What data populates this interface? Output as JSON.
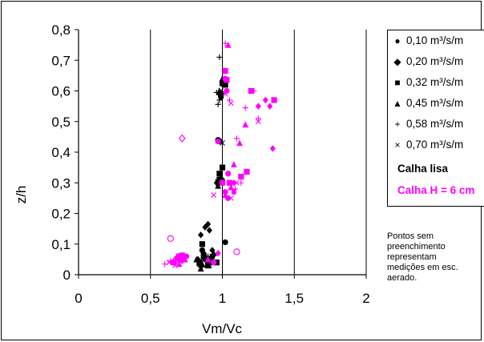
{
  "chart_data": {
    "type": "scatter",
    "xlabel": "Vm/Vc",
    "ylabel": "z/h",
    "xlim": [
      0,
      2
    ],
    "ylim": [
      0,
      0.8
    ],
    "x_ticks": [
      "0",
      "0,5",
      "1",
      "1,5",
      "2"
    ],
    "y_ticks": [
      "0",
      "0,1",
      "0,2",
      "0,3",
      "0,4",
      "0,5",
      "0,6",
      "0,7",
      "0,8"
    ],
    "grid": "vertical lines at x = 0.5, 1, 1.5, 2",
    "legend_position": "right",
    "legend": [
      {
        "symbol": "●",
        "label": "0,10 m³/s/m"
      },
      {
        "symbol": "◆",
        "label": "0,20 m³/s/m"
      },
      {
        "symbol": "■",
        "label": "0,32 m³/s/m"
      },
      {
        "symbol": "▲",
        "label": "0,45 m³/s/m"
      },
      {
        "symbol": "+",
        "label": "0,58 m³/s/m"
      },
      {
        "symbol": "×",
        "label": "0,70 m³/s/m"
      }
    ],
    "color_legend": [
      {
        "label": "Calha lisa",
        "color": "#000000"
      },
      {
        "label": "Calha H = 6 cm",
        "color": "#ff00ff"
      }
    ],
    "note": [
      "Pontos sem",
      "preenchimento",
      "representam",
      "medições em esc.",
      "aerado."
    ],
    "series": [
      {
        "name": "0,10 m³/s/m",
        "group": "Calha lisa",
        "marker": "circle",
        "color": "#000000",
        "points": [
          [
            0.85,
            0.03
          ],
          [
            0.88,
            0.05
          ],
          [
            0.9,
            0.04
          ],
          [
            0.93,
            0.06
          ],
          [
            0.86,
            0.08
          ],
          [
            0.98,
            0.3
          ],
          [
            1.0,
            0.35
          ],
          [
            0.99,
            0.58
          ],
          [
            1.01,
            0.62
          ],
          [
            0.98,
            0.436
          ],
          [
            0.97,
            0.44
          ],
          [
            1.02,
            0.106
          ]
        ]
      },
      {
        "name": "0,20 m³/s/m",
        "group": "Calha lisa",
        "marker": "diamond",
        "color": "#000000",
        "points": [
          [
            0.83,
            0.05
          ],
          [
            0.87,
            0.07
          ],
          [
            0.9,
            0.165
          ],
          [
            0.88,
            0.155
          ],
          [
            0.91,
            0.145
          ],
          [
            0.85,
            0.13
          ],
          [
            0.93,
            0.08
          ],
          [
            0.96,
            0.3
          ],
          [
            1.0,
            0.31
          ],
          [
            0.98,
            0.59
          ],
          [
            1.01,
            0.63
          ],
          [
            0.98,
            0.436
          ]
        ]
      },
      {
        "name": "0,32 m³/s/m",
        "group": "Calha lisa",
        "marker": "square",
        "color": "#000000",
        "points": [
          [
            0.84,
            0.04
          ],
          [
            0.87,
            0.06
          ],
          [
            0.9,
            0.03
          ],
          [
            0.92,
            0.05
          ],
          [
            0.86,
            0.1
          ],
          [
            0.98,
            0.33
          ],
          [
            1.0,
            0.35
          ],
          [
            0.98,
            0.31
          ],
          [
            0.99,
            0.59
          ],
          [
            1.02,
            0.62
          ],
          [
            1.0,
            0.625
          ],
          [
            0.96,
            0.04
          ]
        ]
      },
      {
        "name": "0,45 m³/s/m",
        "group": "Calha lisa",
        "marker": "triangle",
        "color": "#000000",
        "points": [
          [
            0.82,
            0.05
          ],
          [
            0.85,
            0.02
          ],
          [
            0.88,
            0.06
          ],
          [
            0.91,
            0.04
          ],
          [
            0.94,
            0.07
          ],
          [
            0.97,
            0.29
          ],
          [
            0.99,
            0.32
          ],
          [
            0.98,
            0.6
          ],
          [
            1.0,
            0.64
          ],
          [
            0.86,
            0.035
          ],
          [
            0.89,
            0.055
          ]
        ]
      },
      {
        "name": "0,58 m³/s/m",
        "group": "Calha lisa",
        "marker": "plus",
        "color": "#000000",
        "points": [
          [
            0.83,
            0.045
          ],
          [
            0.86,
            0.025
          ],
          [
            0.9,
            0.06
          ],
          [
            0.97,
            0.31
          ],
          [
            0.98,
            0.57
          ],
          [
            0.98,
            0.71
          ],
          [
            0.97,
            0.556
          ],
          [
            0.96,
            0.595
          ]
        ]
      },
      {
        "name": "0,70 m³/s/m",
        "group": "Calha lisa",
        "marker": "x",
        "color": "#000000",
        "points": [
          [
            0.84,
            0.035
          ],
          [
            0.87,
            0.065
          ],
          [
            0.91,
            0.03
          ],
          [
            0.97,
            0.3
          ],
          [
            0.99,
            0.6
          ],
          [
            1.0,
            0.43
          ],
          [
            0.93,
            0.06
          ]
        ]
      },
      {
        "name": "0,10 m³/s/m",
        "group": "Calha H = 6 cm",
        "marker": "circle",
        "color": "#ff00ff",
        "points": [
          [
            0.7,
            0.05
          ],
          [
            0.75,
            0.06
          ],
          [
            0.94,
            0.04
          ],
          [
            1.02,
            0.27
          ],
          [
            1.04,
            0.33
          ],
          [
            1.03,
            0.6
          ],
          [
            1.02,
            0.64
          ],
          [
            1.04,
            0.25
          ],
          [
            0.97,
            0.435
          ]
        ]
      },
      {
        "name": "0,20 m³/s/m",
        "group": "Calha H = 6 cm",
        "marker": "diamond",
        "color": "#ff00ff",
        "points": [
          [
            0.68,
            0.055
          ],
          [
            0.72,
            0.045
          ],
          [
            1.08,
            0.27
          ],
          [
            1.08,
            0.3
          ],
          [
            1.25,
            0.55
          ],
          [
            1.33,
            0.55
          ],
          [
            1.35,
            0.412
          ],
          [
            1.3,
            0.57
          ],
          [
            0.97,
            0.07
          ]
        ]
      },
      {
        "name": "0,32 m³/s/m",
        "group": "Calha H = 6 cm",
        "marker": "square",
        "color": "#ff00ff",
        "points": [
          [
            0.66,
            0.04
          ],
          [
            0.7,
            0.06
          ],
          [
            0.73,
            0.05
          ],
          [
            1.0,
            0.3
          ],
          [
            1.13,
            0.32
          ],
          [
            1.17,
            0.336
          ],
          [
            1.36,
            0.57
          ],
          [
            1.2,
            0.6
          ],
          [
            1.02,
            0.665
          ],
          [
            1.03,
            0.636
          ],
          [
            1.05,
            0.3
          ],
          [
            0.72,
            0.063
          ]
        ]
      },
      {
        "name": "0,45 m³/s/m",
        "group": "Calha H = 6 cm",
        "marker": "triangle",
        "color": "#ff00ff",
        "points": [
          [
            0.66,
            0.045
          ],
          [
            0.7,
            0.035
          ],
          [
            0.74,
            0.05
          ],
          [
            1.02,
            0.26
          ],
          [
            1.12,
            0.43
          ],
          [
            1.16,
            0.49
          ],
          [
            1.04,
            0.75
          ],
          [
            1.08,
            0.36
          ],
          [
            1.06,
            0.285
          ],
          [
            0.9,
            0.05
          ]
        ]
      },
      {
        "name": "0,58 m³/s/m",
        "group": "Calha H = 6 cm",
        "marker": "plus",
        "color": "#ff00ff",
        "points": [
          [
            0.6,
            0.035
          ],
          [
            0.64,
            0.045
          ],
          [
            1.05,
            0.57
          ],
          [
            1.1,
            0.445
          ],
          [
            1.16,
            0.545
          ],
          [
            1.25,
            0.51
          ],
          [
            1.22,
            0.6
          ],
          [
            1.02,
            0.755
          ],
          [
            1.13,
            0.3
          ],
          [
            1.09,
            0.28
          ],
          [
            0.68,
            0.04
          ]
        ]
      },
      {
        "name": "0,70 m³/s/m",
        "group": "Calha H = 6 cm",
        "marker": "x",
        "color": "#ff00ff",
        "points": [
          [
            0.63,
            0.04
          ],
          [
            0.67,
            0.03
          ],
          [
            0.71,
            0.055
          ],
          [
            0.94,
            0.26
          ],
          [
            1.06,
            0.56
          ],
          [
            1.1,
            0.3
          ],
          [
            1.25,
            0.5
          ],
          [
            1.02,
            0.59
          ],
          [
            1.06,
            0.25
          ],
          [
            1.08,
            0.27
          ]
        ]
      },
      {
        "name": "0,10 m³/s/m",
        "group": "Calha H = 6 cm",
        "marker": "circle-open",
        "color": "#ff00ff",
        "points": [
          [
            0.64,
            0.118
          ],
          [
            1.1,
            0.075
          ]
        ]
      },
      {
        "name": "0,20 m³/s/m",
        "group": "Calha H = 6 cm",
        "marker": "diamond-open",
        "color": "#ff00ff",
        "points": [
          [
            0.72,
            0.445
          ]
        ]
      }
    ]
  }
}
